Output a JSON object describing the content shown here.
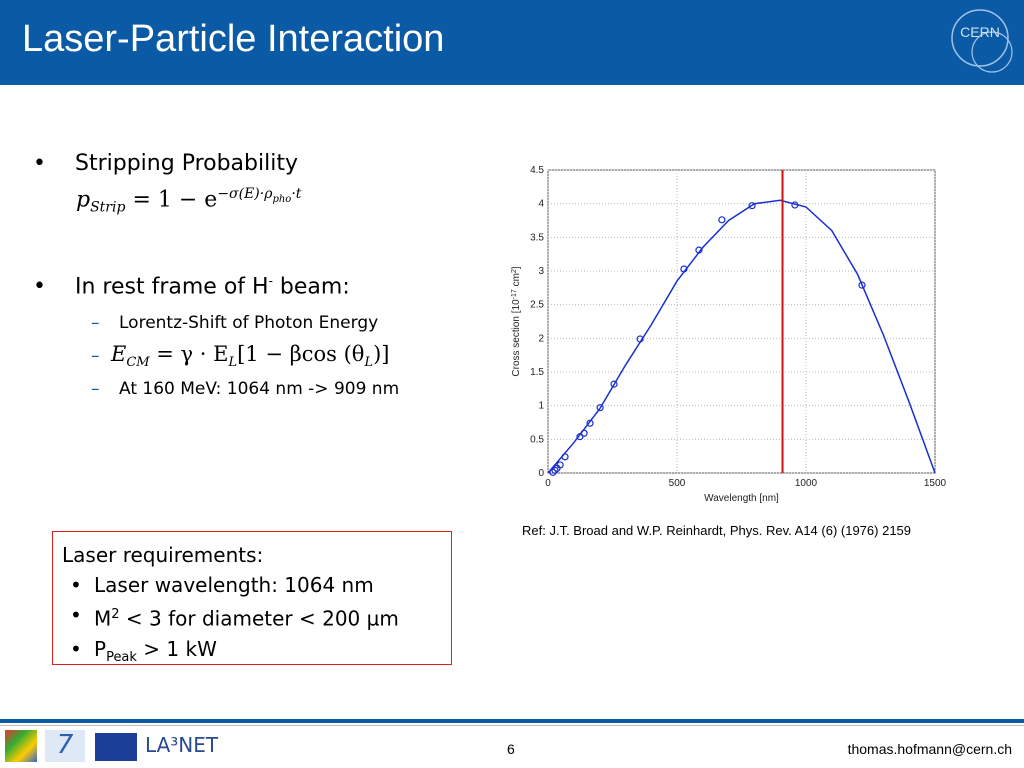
{
  "header": {
    "title": "Laser-Particle Interaction",
    "logo": "CERN"
  },
  "bullets": {
    "b1": "Stripping Probability",
    "formula1": [
      "p",
      "Strip",
      "= 1 − e",
      "−σ(E)·ρ",
      "pho",
      "·t"
    ],
    "b2": [
      "In rest frame of H",
      "-",
      " beam:"
    ],
    "sub1": "Lorentz-Shift of Photon Energy",
    "formula2": [
      "E",
      "CM",
      " = γ · E",
      "L",
      "[1 − βcos (θ",
      "L",
      ")]"
    ],
    "sub3": "At 160 MeV: 1064 nm -> 909 nm"
  },
  "box": {
    "heading": "Laser requirements:",
    "item1": "Laser wavelength: 1064 nm",
    "item2": [
      "M",
      "2",
      " < 3 for diameter  < 200 µm"
    ],
    "item3": [
      "P",
      "Peak",
      " > 1 kW"
    ]
  },
  "figure": {
    "xlabel": "Wavelength [nm]",
    "ylabel": [
      "Cross section [10",
      "-17",
      " cm",
      "2",
      "]"
    ],
    "xlim": [
      0,
      1500
    ],
    "ylim": [
      0,
      4.5
    ],
    "xticks": [
      0,
      500,
      1000,
      1500
    ],
    "yticks": [
      0,
      0.5,
      1,
      1.5,
      2,
      2.5,
      3,
      3.5,
      4,
      4.5
    ],
    "grid": true,
    "points": {
      "color": "#1a2fd0",
      "x": [
        19,
        27,
        35,
        47,
        66,
        124,
        140,
        163,
        202,
        256,
        357,
        527,
        585,
        674,
        791,
        957,
        1217
      ],
      "y": [
        0.01,
        0.04,
        0.07,
        0.12,
        0.24,
        0.54,
        0.59,
        0.74,
        0.97,
        1.32,
        1.99,
        3.03,
        3.31,
        3.76,
        3.97,
        3.98,
        2.79
      ]
    },
    "curve": {
      "color": "#1a2fd0",
      "x": [
        0,
        100,
        200,
        300,
        400,
        500,
        600,
        700,
        800,
        900,
        1000,
        1100,
        1200,
        1300,
        1400,
        1500
      ],
      "y": [
        0,
        0.45,
        0.95,
        1.6,
        2.2,
        2.85,
        3.35,
        3.75,
        4.0,
        4.05,
        3.95,
        3.6,
        2.95,
        2.05,
        1.05,
        0
      ]
    },
    "marker_x": 909,
    "marker_color": "#d01010"
  },
  "ref": "Ref: J.T. Broad and W.P. Reinhardt, Phys. Rev. A14 (6) (1976) 2159",
  "footer": {
    "page": "6",
    "email": "thomas.hofmann@cern.ch"
  }
}
